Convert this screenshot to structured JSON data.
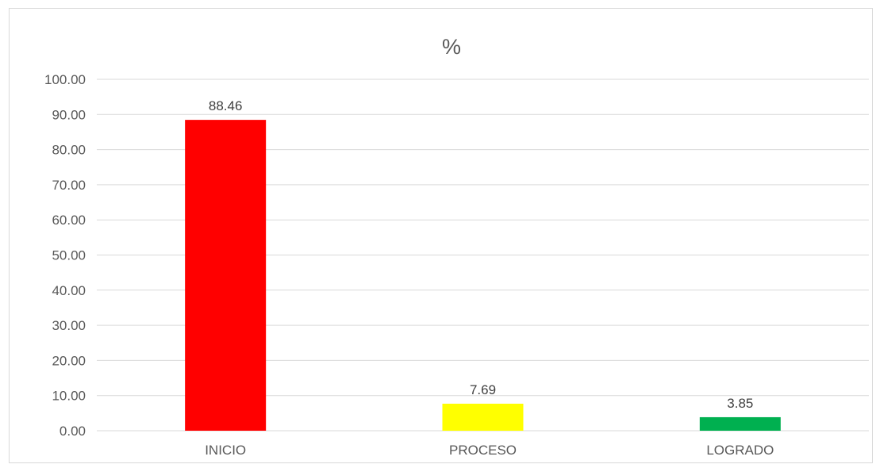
{
  "chart_data": {
    "type": "bar",
    "title": "%",
    "xlabel": "",
    "ylabel": "",
    "categories": [
      "INICIO",
      "PROCESO",
      "LOGRADO"
    ],
    "values": [
      88.46,
      7.69,
      3.85
    ],
    "data_labels": [
      "88.46",
      "7.69",
      "3.85"
    ],
    "colors": [
      "#ff0000",
      "#ffff00",
      "#00b050"
    ],
    "ylim": [
      0,
      100
    ],
    "yticks": [
      0,
      10,
      20,
      30,
      40,
      50,
      60,
      70,
      80,
      90,
      100
    ],
    "ytick_labels": [
      "0.00",
      "10.00",
      "20.00",
      "30.00",
      "40.00",
      "50.00",
      "60.00",
      "70.00",
      "80.00",
      "90.00",
      "100.00"
    ],
    "grid": true,
    "legend": "none",
    "gridline_color": "#d9d9d9"
  }
}
